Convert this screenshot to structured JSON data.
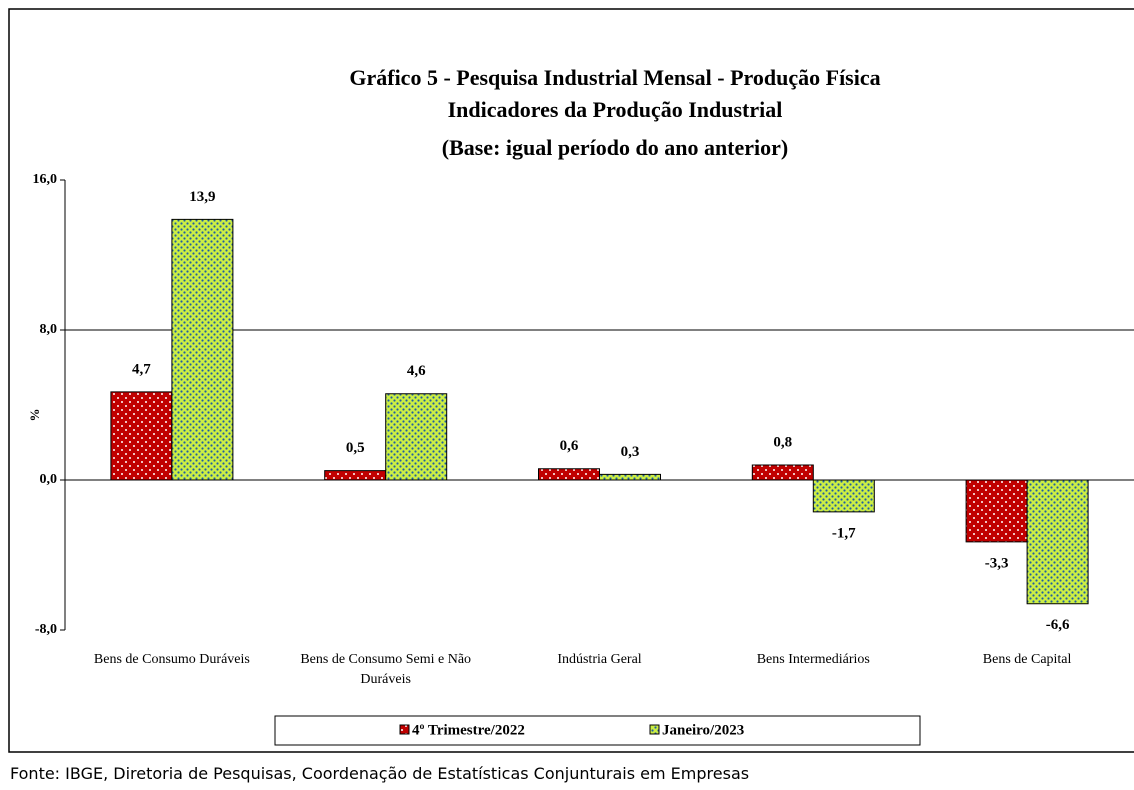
{
  "chart_data": {
    "type": "bar",
    "title": "Gráfico 5 - Pesquisa Industrial Mensal - Produção Física",
    "subtitle": [
      "Indicadores da Produção Industrial",
      "(Base: igual período do ano anterior)"
    ],
    "y_label": "%",
    "categories": [
      "Bens de Consumo Duráveis",
      "Bens de Consumo Semi e Não Duráveis",
      "Indústria Geral",
      "Bens Intermediários",
      "Bens de Capital"
    ],
    "series": [
      {
        "name": "4º Trimestre/2022",
        "color": "#c00000",
        "values": [
          4.7,
          0.5,
          0.6,
          0.8,
          -3.3
        ],
        "value_labels": [
          "4,7",
          "0,5",
          "0,6",
          "0,8",
          "-3,3"
        ]
      },
      {
        "name": "Janeiro/2023",
        "color": "#ccee44",
        "values": [
          13.9,
          4.6,
          0.3,
          -1.7,
          -6.6
        ],
        "value_labels": [
          "13,9",
          "4,6",
          "0,3",
          "-1,7",
          "-6,6"
        ]
      }
    ],
    "ylim": [
      -8,
      16
    ],
    "yticks": [
      {
        "value": -8,
        "label": "-8,0"
      },
      {
        "value": 0,
        "label": "0,0"
      },
      {
        "value": 8,
        "label": "8,0"
      },
      {
        "value": 16,
        "label": "16,0"
      }
    ],
    "grid": true,
    "legend": "bottom",
    "source": "Fonte: IBGE, Diretoria de Pesquisas, Coordenação de Estatísticas Conjunturais em Empresas"
  }
}
